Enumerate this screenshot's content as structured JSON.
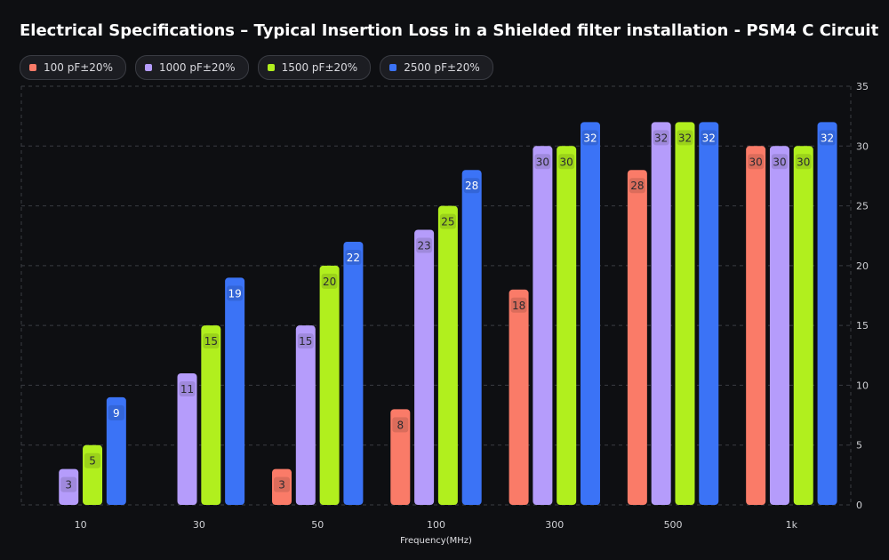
{
  "chart_data": {
    "type": "bar",
    "title": "Electrical Specifications – Typical Insertion Loss in a Shielded filter installation - PSM4 C Circuit",
    "xlabel": "Frequency(MHz)",
    "ylabel": "",
    "ylim": [
      0,
      35
    ],
    "yticks": [
      "0",
      "5",
      "10",
      "15",
      "20",
      "25",
      "30",
      "35"
    ],
    "y_axis_side": "right",
    "grid": true,
    "legend_position": "top-left",
    "categories": [
      "10",
      "30",
      "50",
      "100",
      "300",
      "500",
      "1k"
    ],
    "series": [
      {
        "name": "100 pF±20%",
        "color": "#fa7b68",
        "values": [
          null,
          null,
          3,
          8,
          18,
          28,
          30
        ]
      },
      {
        "name": "1000 pF±20%",
        "color": "#b59cfb",
        "values": [
          3,
          11,
          15,
          23,
          30,
          32,
          30
        ]
      },
      {
        "name": "1500 pF±20%",
        "color": "#b1ef1e",
        "values": [
          5,
          15,
          20,
          25,
          30,
          32,
          30
        ]
      },
      {
        "name": "2500 pF±20%",
        "color": "#3b73f6",
        "values": [
          9,
          19,
          22,
          28,
          32,
          32,
          32
        ]
      }
    ]
  }
}
